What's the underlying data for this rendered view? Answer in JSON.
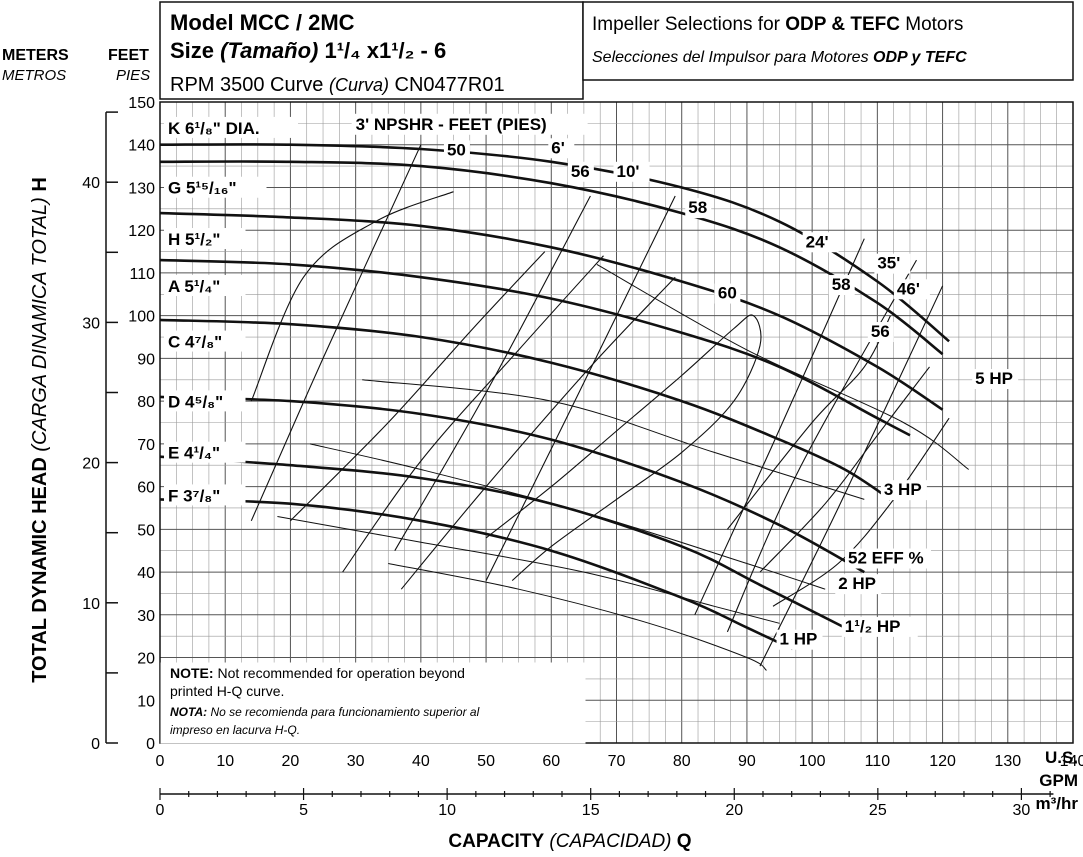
{
  "header": {
    "model": "Model MCC / 2MC",
    "size_label": "Size",
    "size_spanish": "(Tamaño)",
    "size_value": "1¹/₄ x1¹/₂ - 6",
    "rpm_label": "RPM 3500 Curve",
    "curve_spanish": "(Curva)",
    "curve_id": "CN0477R01",
    "impeller_title_pre": "Impeller Selections for",
    "impeller_title_bold": "ODP & TEFC",
    "impeller_title_post": "Motors",
    "impeller_es_pre": "Selecciones del Impulsor para Motores",
    "impeller_es_bold": "ODP y TEFC"
  },
  "units": {
    "meters": "METERS",
    "metros": "METROS",
    "feet": "FEET",
    "pies": "PIES",
    "us_gpm_1": "U.S.",
    "us_gpm_2": "GPM",
    "m3hr": "m³/hr"
  },
  "axis": {
    "ylabel_en": "TOTAL DYNAMIC HEAD",
    "ylabel_es": "(CARGA DINAMICA TOTAL)",
    "ylabel_sym": "H",
    "xlabel_en": "CAPACITY",
    "xlabel_es": "(CAPACIDAD)",
    "xlabel_sym": "Q"
  },
  "note": {
    "en_bold": "NOTE:",
    "en_1": "Not recommended for operation beyond",
    "en_2": "printed H-Q curve.",
    "es_bold": "NOTA:",
    "es_1": "No se recomienda para funcionamiento superior al",
    "es_2": "impreso en lacurva H-Q."
  },
  "chart_data": {
    "type": "line",
    "x_axis_gpm": {
      "min": 0,
      "max": 140,
      "ticks": [
        0,
        10,
        20,
        30,
        40,
        50,
        60,
        70,
        80,
        90,
        100,
        110,
        120,
        130,
        140
      ]
    },
    "x_axis_m3hr": {
      "ticks": [
        0,
        5,
        10,
        15,
        20,
        25,
        30
      ]
    },
    "y_axis_feet": {
      "min": 0,
      "max": 150,
      "ticks": [
        0,
        10,
        20,
        30,
        40,
        50,
        60,
        70,
        80,
        90,
        100,
        110,
        120,
        130,
        140,
        150
      ]
    },
    "y_axis_meters": {
      "ticks": [
        0,
        10,
        20,
        30,
        40
      ]
    },
    "impeller_curves": [
      {
        "name": "K 6¹/₈\" DIA.",
        "points": [
          [
            0,
            140
          ],
          [
            20,
            140
          ],
          [
            40,
            139
          ],
          [
            60,
            136
          ],
          [
            80,
            130
          ],
          [
            95,
            122
          ],
          [
            110,
            108
          ],
          [
            121,
            94
          ]
        ]
      },
      {
        "name": "G 5¹⁵/₁₆\"",
        "points": [
          [
            0,
            136
          ],
          [
            20,
            136
          ],
          [
            40,
            135
          ],
          [
            60,
            131
          ],
          [
            80,
            124
          ],
          [
            95,
            116
          ],
          [
            110,
            103
          ],
          [
            120,
            91
          ]
        ]
      },
      {
        "name": "H 5¹/₂\"",
        "points": [
          [
            0,
            124
          ],
          [
            20,
            123
          ],
          [
            40,
            121
          ],
          [
            60,
            116
          ],
          [
            80,
            108
          ],
          [
            95,
            100
          ],
          [
            110,
            88
          ],
          [
            120,
            78
          ]
        ]
      },
      {
        "name": "A 5¹/₄\"",
        "points": [
          [
            0,
            113
          ],
          [
            20,
            112
          ],
          [
            40,
            109
          ],
          [
            60,
            104
          ],
          [
            80,
            96
          ],
          [
            95,
            88
          ],
          [
            110,
            76
          ],
          [
            115,
            72
          ]
        ]
      },
      {
        "name": "C 4⁷/₈\"",
        "points": [
          [
            0,
            99
          ],
          [
            20,
            98
          ],
          [
            40,
            95
          ],
          [
            60,
            89
          ],
          [
            80,
            80
          ],
          [
            95,
            71
          ],
          [
            105,
            64
          ],
          [
            112,
            57
          ]
        ]
      },
      {
        "name": "D 4⁵/₈\"",
        "points": [
          [
            0,
            81
          ],
          [
            20,
            80
          ],
          [
            40,
            77
          ],
          [
            60,
            71
          ],
          [
            80,
            61
          ],
          [
            95,
            51
          ],
          [
            108,
            40
          ]
        ]
      },
      {
        "name": "E 4¹/₄\"",
        "points": [
          [
            0,
            67
          ],
          [
            20,
            65
          ],
          [
            40,
            62
          ],
          [
            60,
            56
          ],
          [
            80,
            46
          ],
          [
            92,
            37
          ],
          [
            105,
            27
          ]
        ]
      },
      {
        "name": "F 3⁷/₈\"",
        "points": [
          [
            0,
            57
          ],
          [
            20,
            56
          ],
          [
            40,
            52
          ],
          [
            60,
            45
          ],
          [
            80,
            34
          ],
          [
            90,
            27
          ],
          [
            97,
            22
          ]
        ]
      }
    ],
    "impeller_labels": [
      "K 6¹/₈\" DIA.",
      "G 5¹⁵/₁₆\"",
      "H 5¹/₂\"",
      "A 5¹/₄\"",
      "C 4⁷/₈\"",
      "D 4⁵/₈\"",
      "E 4¹/₄\"",
      "F 3⁷/₈\""
    ],
    "efficiency_lines": [
      {
        "label": "50",
        "points": [
          [
            14,
            80
          ],
          [
            22,
            109
          ],
          [
            33,
            122
          ],
          [
            45,
            129
          ]
        ]
      },
      {
        "label": "52 EFF %",
        "points": [
          [
            20,
            52
          ],
          [
            35,
            75
          ],
          [
            48,
            97
          ],
          [
            59,
            115
          ]
        ]
      },
      {
        "label": "56",
        "points": [
          [
            28,
            40
          ],
          [
            40,
            66
          ],
          [
            55,
            92
          ],
          [
            68,
            114
          ]
        ]
      },
      {
        "label": "58",
        "points": [
          [
            37,
            36
          ],
          [
            50,
            60
          ],
          [
            66,
            88
          ],
          [
            79,
            109
          ]
        ]
      },
      {
        "label": "58",
        "points": [
          [
            87,
            50
          ],
          [
            100,
            75
          ],
          [
            108,
            88
          ],
          [
            112,
            100
          ]
        ]
      },
      {
        "label": "56",
        "points": [
          [
            92,
            40
          ],
          [
            102,
            56
          ],
          [
            110,
            72
          ],
          [
            118,
            88
          ]
        ]
      },
      {
        "label": "52",
        "points": [
          [
            94,
            32
          ],
          [
            104,
            42
          ],
          [
            112,
            56
          ],
          [
            121,
            76
          ]
        ]
      }
    ],
    "efficiency_peak_60": {
      "label": "60",
      "points": [
        [
          50,
          48
        ],
        [
          60,
          60
        ],
        [
          70,
          73
        ],
        [
          80,
          86
        ],
        [
          88,
          97
        ],
        [
          91,
          100
        ],
        [
          92,
          93
        ],
        [
          88,
          80
        ],
        [
          80,
          68
        ],
        [
          70,
          57
        ],
        [
          60,
          46
        ],
        [
          54,
          38
        ]
      ]
    },
    "npsh_lines": [
      {
        "label": "3' NPSHR - FEET (PIES)",
        "points": [
          [
            14,
            52
          ],
          [
            25,
            90
          ],
          [
            40,
            140
          ]
        ]
      },
      {
        "label": "6'",
        "points": [
          [
            36,
            45
          ],
          [
            50,
            82
          ],
          [
            66,
            128
          ]
        ]
      },
      {
        "label": "10'",
        "points": [
          [
            50,
            38
          ],
          [
            62,
            75
          ],
          [
            79,
            128
          ]
        ]
      },
      {
        "label": "24'",
        "points": [
          [
            82,
            30
          ],
          [
            94,
            70
          ],
          [
            108,
            118
          ]
        ]
      },
      {
        "label": "35'",
        "points": [
          [
            87,
            26
          ],
          [
            98,
            64
          ],
          [
            116,
            113
          ]
        ]
      },
      {
        "label": "46'",
        "points": [
          [
            92,
            18
          ],
          [
            104,
            55
          ],
          [
            120,
            107
          ]
        ]
      }
    ],
    "hp_lines": [
      {
        "label": "5 HP",
        "points": [
          [
            67,
            112
          ],
          [
            90,
            92
          ],
          [
            114,
            75
          ],
          [
            124,
            64
          ]
        ]
      },
      {
        "label": "3 HP",
        "points": [
          [
            31,
            85
          ],
          [
            60,
            80
          ],
          [
            85,
            68
          ],
          [
            108,
            57
          ]
        ]
      },
      {
        "label": "2 HP",
        "points": [
          [
            23,
            70
          ],
          [
            40,
            64
          ],
          [
            65,
            54
          ],
          [
            90,
            42
          ],
          [
            102,
            36
          ]
        ]
      },
      {
        "label": "1¹/₂ HP",
        "points": [
          [
            18,
            53
          ],
          [
            40,
            47
          ],
          [
            65,
            40
          ],
          [
            85,
            32
          ],
          [
            95,
            28
          ]
        ]
      },
      {
        "label": "1 HP",
        "points": [
          [
            35,
            42
          ],
          [
            55,
            36
          ],
          [
            75,
            28
          ],
          [
            90,
            20
          ],
          [
            93,
            17
          ]
        ]
      }
    ]
  }
}
